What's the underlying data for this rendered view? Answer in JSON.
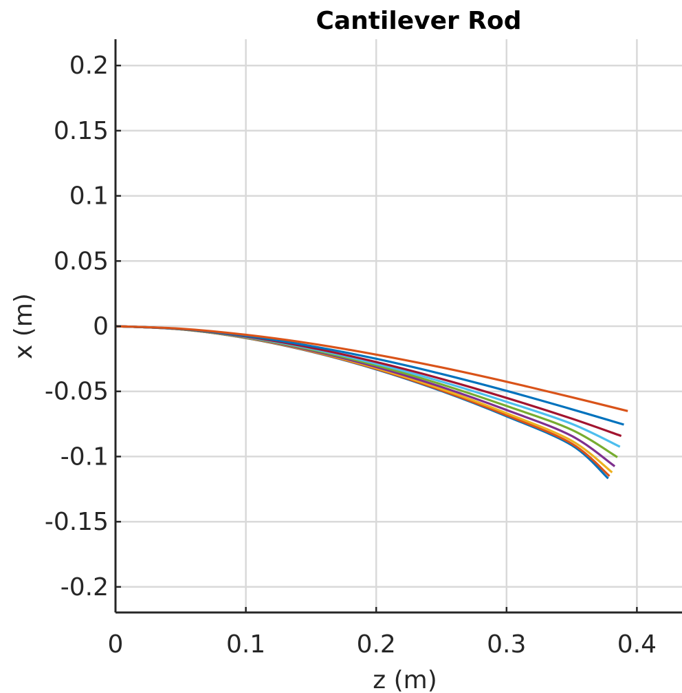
{
  "chart_data": {
    "type": "line",
    "title": "Cantilever Rod",
    "xlabel": "z (m)",
    "ylabel": "x (m)",
    "xlim": [
      0,
      0.435
    ],
    "ylim": [
      -0.22,
      0.22
    ],
    "x_ticks": [
      0,
      0.1,
      0.2,
      0.3,
      0.4
    ],
    "x_tick_labels": [
      "0",
      "0.1",
      "0.2",
      "0.3",
      "0.4"
    ],
    "y_ticks": [
      0.2,
      0.15,
      0.1,
      0.05,
      0,
      -0.05,
      -0.1,
      -0.15,
      -0.2
    ],
    "y_tick_labels": [
      "0.2",
      "0.15",
      "0.1",
      "0.05",
      "0",
      "-0.05",
      "-0.1",
      "-0.15",
      "-0.2"
    ],
    "grid": true,
    "legend": "none",
    "series": [
      {
        "color": "#D95319",
        "x": [
          0,
          0.05,
          0.1,
          0.15,
          0.2,
          0.25,
          0.3,
          0.35,
          0.393
        ],
        "y": [
          0,
          -0.0019,
          -0.0066,
          -0.0133,
          -0.0218,
          -0.0316,
          -0.0426,
          -0.0545,
          -0.0651
        ]
      },
      {
        "color": "#0072BD",
        "x": [
          0,
          0.05,
          0.1,
          0.15,
          0.2,
          0.25,
          0.3,
          0.35,
          0.39
        ],
        "y": [
          0,
          -0.0021,
          -0.0074,
          -0.0152,
          -0.025,
          -0.0366,
          -0.0496,
          -0.0637,
          -0.0755
        ]
      },
      {
        "color": "#A2142F",
        "x": [
          0,
          0.05,
          0.1,
          0.15,
          0.2,
          0.25,
          0.3,
          0.35,
          0.388
        ],
        "y": [
          0,
          -0.0022,
          -0.0079,
          -0.0165,
          -0.0275,
          -0.0404,
          -0.055,
          -0.0709,
          -0.0842
        ]
      },
      {
        "color": "#4DBEEE",
        "x": [
          0,
          0.05,
          0.1,
          0.15,
          0.2,
          0.25,
          0.3,
          0.35,
          0.387
        ],
        "y": [
          0,
          -0.0022,
          -0.0082,
          -0.0172,
          -0.0288,
          -0.0425,
          -0.058,
          -0.0749,
          -0.0925
        ]
      },
      {
        "color": "#77AC30",
        "x": [
          0,
          0.05,
          0.1,
          0.15,
          0.2,
          0.25,
          0.3,
          0.35,
          0.385
        ],
        "y": [
          0,
          -0.0023,
          -0.0085,
          -0.0179,
          -0.0301,
          -0.0446,
          -0.0612,
          -0.0795,
          -0.1005
        ]
      },
      {
        "color": "#7E2F8E",
        "x": [
          0,
          0.05,
          0.1,
          0.15,
          0.2,
          0.25,
          0.3,
          0.35,
          0.383
        ],
        "y": [
          0,
          -0.0023,
          -0.0087,
          -0.0186,
          -0.0313,
          -0.0466,
          -0.0643,
          -0.0842,
          -0.1075
        ]
      },
      {
        "color": "#EDB120",
        "x": [
          0,
          0.05,
          0.1,
          0.15,
          0.2,
          0.25,
          0.3,
          0.35,
          0.381
        ],
        "y": [
          0,
          -0.0024,
          -0.0089,
          -0.019,
          -0.0322,
          -0.0482,
          -0.0668,
          -0.0879,
          -0.1122
        ]
      },
      {
        "color": "#D95319",
        "x": [
          0,
          0.05,
          0.1,
          0.15,
          0.2,
          0.25,
          0.3,
          0.35,
          0.379
        ],
        "y": [
          0,
          -0.0024,
          -0.009,
          -0.0193,
          -0.0328,
          -0.0492,
          -0.0683,
          -0.0901,
          -0.115
        ]
      },
      {
        "color": "#0072BD",
        "x": [
          0,
          0.05,
          0.1,
          0.15,
          0.2,
          0.25,
          0.3,
          0.35,
          0.378
        ],
        "y": [
          0,
          -0.0024,
          -0.0091,
          -0.0195,
          -0.0331,
          -0.0497,
          -0.0691,
          -0.0913,
          -0.1168
        ]
      }
    ]
  }
}
